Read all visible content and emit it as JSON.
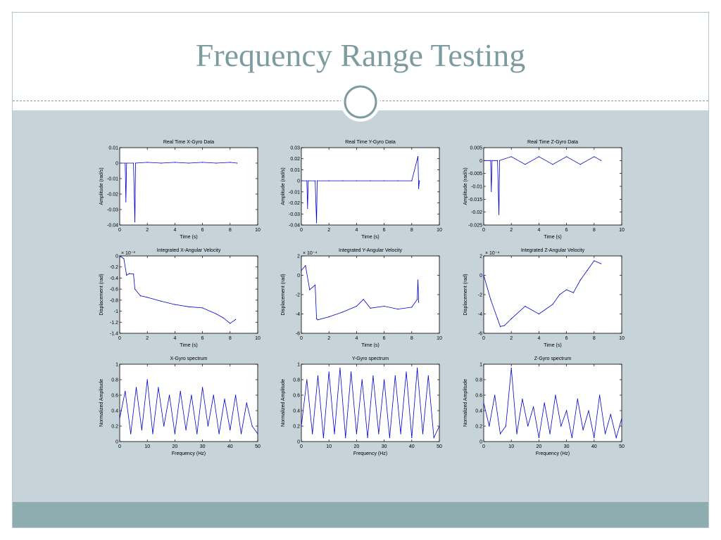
{
  "slide": {
    "title": "Frequency Range Testing",
    "colors": {
      "title": "#7d9ca0",
      "panel": "#c6d3d9",
      "footer": "#8dadb0",
      "series": "#0000cc"
    }
  },
  "chart_data": [
    {
      "type": "line",
      "title": "Real Time X-Gyro Data",
      "xlabel": "Time (s)",
      "ylabel": "Amplitude (rad/s)",
      "xlim": [
        0,
        10
      ],
      "ylim": [
        -0.04,
        0.01
      ],
      "xticks": [
        0,
        2,
        4,
        6,
        8,
        10
      ],
      "yticks": [
        0.01,
        0,
        -0.01,
        -0.02,
        -0.03,
        -0.04
      ],
      "ytick_labels": [
        "0.01",
        "0",
        "-0.01",
        "-0.02",
        "-0.03",
        "-0.04"
      ],
      "series": [
        {
          "x": [
            0,
            0.4,
            0.45,
            0.5,
            1.0,
            1.1,
            1.15,
            2,
            3,
            4,
            5,
            6,
            7,
            8,
            8.5
          ],
          "y": [
            0,
            0,
            -0.025,
            0,
            0,
            -0.038,
            0,
            0.0005,
            0,
            0.0005,
            0,
            0.0005,
            0,
            0.0005,
            0
          ]
        }
      ]
    },
    {
      "type": "line",
      "title": "Real Time Y-Gyro Data",
      "xlabel": "Time (s)",
      "ylabel": "Amplitude (rad/s)",
      "xlim": [
        0,
        10
      ],
      "ylim": [
        -0.04,
        0.03
      ],
      "xticks": [
        0,
        2,
        4,
        6,
        8,
        10
      ],
      "yticks": [
        0.03,
        0.02,
        0.01,
        0,
        -0.01,
        -0.02,
        -0.03,
        -0.04
      ],
      "ytick_labels": [
        "0.03",
        "0.02",
        "0.01",
        "0",
        "-0.01",
        "-0.02",
        "-0.03",
        "-0.04"
      ],
      "series": [
        {
          "x": [
            0,
            0.4,
            0.45,
            0.5,
            1.0,
            1.1,
            1.15,
            2,
            3,
            4,
            5,
            6,
            7,
            8,
            8.45,
            8.5,
            8.55
          ],
          "y": [
            0,
            0,
            -0.025,
            0,
            0,
            -0.038,
            0,
            0,
            0,
            0,
            0,
            0,
            0,
            0,
            0.022,
            -0.007,
            0
          ]
        }
      ]
    },
    {
      "type": "line",
      "title": "Real Time Z-Gyro Data",
      "xlabel": "Time (s)",
      "ylabel": "Amplitude (rad/s)",
      "xlim": [
        0,
        10
      ],
      "ylim": [
        -0.025,
        0.005
      ],
      "xticks": [
        0,
        2,
        4,
        6,
        8,
        10
      ],
      "yticks": [
        0.005,
        0,
        -0.005,
        -0.01,
        -0.015,
        -0.02,
        -0.025
      ],
      "ytick_labels": [
        "0.005",
        "0",
        "-0.005",
        "-0.01",
        "-0.015",
        "-0.02",
        "-0.025"
      ],
      "series": [
        {
          "x": [
            0,
            0.5,
            0.55,
            0.6,
            1.0,
            1.1,
            1.15,
            2,
            3,
            4,
            5,
            6,
            7,
            8,
            8.5
          ],
          "y": [
            0,
            0,
            -0.012,
            0,
            0,
            -0.021,
            0,
            0.0015,
            -0.0015,
            0.0015,
            -0.0015,
            0.0015,
            -0.0015,
            0.0015,
            0
          ]
        }
      ]
    },
    {
      "type": "line",
      "title": "Integrated X-Angular Velocity",
      "xlabel": "Time (s)",
      "ylabel": "Displacement (rad)",
      "xlim": [
        0,
        10
      ],
      "ylim": [
        -1.4,
        0
      ],
      "exponent": "× 10⁻³",
      "xticks": [
        0,
        2,
        4,
        6,
        8,
        10
      ],
      "yticks": [
        0,
        -0.2,
        -0.4,
        -0.6,
        -0.8,
        -1,
        -1.2,
        -1.4
      ],
      "ytick_labels": [
        "0",
        "-0.2",
        "-0.4",
        "-0.6",
        "-0.8",
        "-1",
        "-1.2",
        "-1.4"
      ],
      "series": [
        {
          "x": [
            0,
            0.3,
            0.5,
            0.7,
            1.0,
            1.1,
            1.5,
            2,
            3,
            4,
            5,
            6,
            7,
            7.5,
            8,
            8.4
          ],
          "y": [
            0,
            -0.05,
            -0.35,
            -0.32,
            -0.33,
            -0.6,
            -0.72,
            -0.75,
            -0.82,
            -0.88,
            -0.92,
            -0.94,
            -1.05,
            -1.12,
            -1.22,
            -1.15
          ]
        }
      ]
    },
    {
      "type": "line",
      "title": "Integrated Y-Angular Velocity",
      "xlabel": "Time (s)",
      "ylabel": "Displacement (rad)",
      "xlim": [
        0,
        10
      ],
      "ylim": [
        -6,
        2
      ],
      "exponent": "× 10⁻⁴",
      "xticks": [
        0,
        2,
        4,
        6,
        8,
        10
      ],
      "yticks": [
        2,
        0,
        -2,
        -4,
        -6
      ],
      "ytick_labels": [
        "2",
        "0",
        "-2",
        "-4",
        "-6"
      ],
      "series": [
        {
          "x": [
            0,
            0.3,
            0.6,
            1.0,
            1.1,
            1.2,
            2,
            3,
            4,
            4.5,
            5,
            6,
            7,
            8,
            8.4,
            8.45,
            8.5
          ],
          "y": [
            0.5,
            1,
            -1.5,
            -1,
            -4.5,
            -4.6,
            -4.3,
            -3.8,
            -3.2,
            -2.5,
            -3.4,
            -3.2,
            -3.5,
            -3.3,
            -2.5,
            -0.5,
            -2.8
          ]
        }
      ]
    },
    {
      "type": "line",
      "title": "Integrated Z-Angular Velocity",
      "xlabel": "Time (s)",
      "ylabel": "Displacement (rad)",
      "xlim": [
        0,
        10
      ],
      "ylim": [
        -6,
        2
      ],
      "exponent": "× 10⁻⁴",
      "xticks": [
        0,
        2,
        4,
        6,
        8,
        10
      ],
      "yticks": [
        2,
        0,
        -2,
        -4,
        -6
      ],
      "ytick_labels": [
        "2",
        "0",
        "-2",
        "-4",
        "-6"
      ],
      "series": [
        {
          "x": [
            0,
            0.5,
            1.0,
            1.2,
            1.5,
            2,
            3,
            4,
            5,
            5.5,
            6,
            6.5,
            7,
            7.5,
            8,
            8.5
          ],
          "y": [
            0,
            -2.5,
            -4.5,
            -5.3,
            -5.2,
            -4.5,
            -3.2,
            -4,
            -3,
            -2,
            -1.5,
            -1.8,
            -0.5,
            0.5,
            1.5,
            1.2
          ]
        }
      ]
    },
    {
      "type": "line",
      "title": "X-Gyro spectrum",
      "xlabel": "Frequency (Hz)",
      "ylabel": "Normalized Amplitude",
      "xlim": [
        0,
        50
      ],
      "ylim": [
        0,
        1
      ],
      "xticks": [
        0,
        10,
        20,
        30,
        40,
        50
      ],
      "yticks": [
        1,
        0.8,
        0.6,
        0.4,
        0.2,
        0
      ],
      "ytick_labels": [
        "1",
        "0.8",
        "0.6",
        "0.4",
        "0.2",
        "0"
      ],
      "series": [
        {
          "x": [
            0,
            2,
            4,
            6,
            8,
            10,
            12,
            14,
            16,
            18,
            20,
            22,
            24,
            26,
            28,
            30,
            32,
            34,
            36,
            38,
            40,
            42,
            44,
            46,
            48,
            50
          ],
          "y": [
            0.3,
            0.65,
            0.1,
            0.7,
            0.15,
            0.8,
            0.1,
            0.7,
            0.2,
            0.6,
            0.1,
            0.65,
            0.15,
            0.6,
            0.1,
            0.7,
            0.2,
            0.6,
            0.1,
            0.55,
            0.15,
            0.6,
            0.1,
            0.5,
            0.2,
            0.1
          ]
        }
      ]
    },
    {
      "type": "line",
      "title": "Y-Gyro spectrum",
      "xlabel": "Frequency (Hz)",
      "ylabel": "Normalized Amplitude",
      "xlim": [
        0,
        50
      ],
      "ylim": [
        0,
        1
      ],
      "xticks": [
        0,
        10,
        20,
        30,
        40,
        50
      ],
      "yticks": [
        1,
        0.8,
        0.6,
        0.4,
        0.2,
        0
      ],
      "ytick_labels": [
        "1",
        "0.8",
        "0.6",
        "0.4",
        "0.2",
        "0"
      ],
      "series": [
        {
          "x": [
            0,
            2,
            4,
            6,
            8,
            10,
            12,
            14,
            16,
            18,
            20,
            22,
            24,
            26,
            28,
            30,
            32,
            34,
            36,
            38,
            40,
            42,
            44,
            46,
            48,
            50
          ],
          "y": [
            0.2,
            0.8,
            0.1,
            0.85,
            0.05,
            0.9,
            0.1,
            0.95,
            0.05,
            0.9,
            0.1,
            0.8,
            0.05,
            0.85,
            0.1,
            0.8,
            0.05,
            0.85,
            0.1,
            0.9,
            0.05,
            0.95,
            0.1,
            0.85,
            0.05,
            0.2
          ]
        }
      ]
    },
    {
      "type": "line",
      "title": "Z-Gyro spectrum",
      "xlabel": "Frequency (Hz)",
      "ylabel": "Normalized Amplitude",
      "xlim": [
        0,
        50
      ],
      "ylim": [
        0,
        1
      ],
      "xticks": [
        0,
        10,
        20,
        30,
        40,
        50
      ],
      "yticks": [
        1,
        0.8,
        0.6,
        0.4,
        0.2,
        0
      ],
      "ytick_labels": [
        "1",
        "0.8",
        "0.6",
        "0.4",
        "0.2",
        "0"
      ],
      "series": [
        {
          "x": [
            0,
            2,
            4,
            6,
            8,
            10,
            12,
            14,
            16,
            18,
            20,
            22,
            24,
            26,
            28,
            30,
            32,
            34,
            36,
            38,
            40,
            42,
            44,
            46,
            48,
            50
          ],
          "y": [
            0.5,
            0.2,
            0.6,
            0.1,
            0.2,
            0.95,
            0.1,
            0.55,
            0.2,
            0.45,
            0.05,
            0.5,
            0.1,
            0.6,
            0.2,
            0.4,
            0.05,
            0.55,
            0.15,
            0.4,
            0.05,
            0.6,
            0.1,
            0.35,
            0.05,
            0.3
          ]
        }
      ]
    }
  ]
}
